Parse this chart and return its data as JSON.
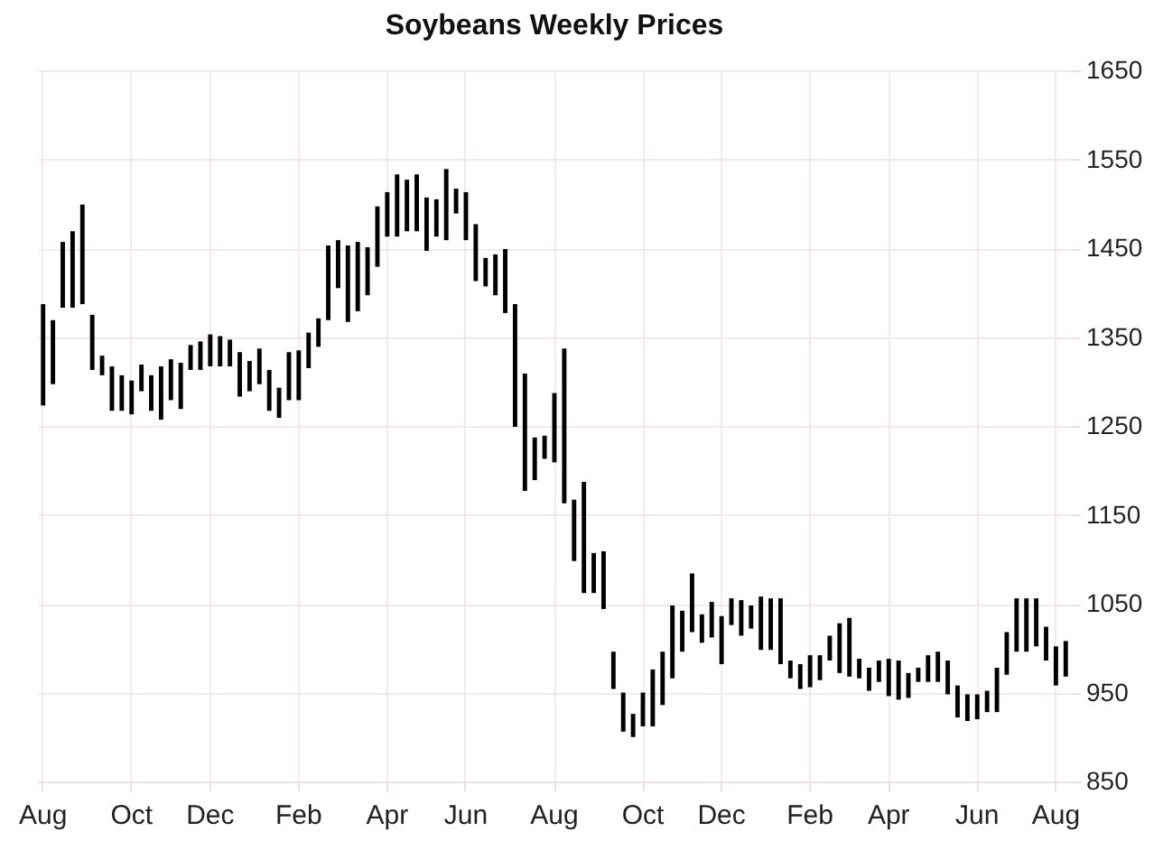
{
  "chart_data": {
    "type": "bar",
    "title": "Soybeans Weekly Prices",
    "categories": [
      "Aug",
      null,
      null,
      null,
      null,
      null,
      null,
      null,
      null,
      "Oct",
      null,
      null,
      null,
      null,
      null,
      null,
      null,
      "Dec",
      null,
      null,
      null,
      null,
      null,
      null,
      null,
      null,
      "Feb",
      null,
      null,
      null,
      null,
      null,
      null,
      null,
      null,
      "Apr",
      null,
      null,
      null,
      null,
      null,
      null,
      null,
      "Jun",
      null,
      null,
      null,
      null,
      null,
      null,
      null,
      null,
      "Aug",
      null,
      null,
      null,
      null,
      null,
      null,
      null,
      null,
      "Oct",
      null,
      null,
      null,
      null,
      null,
      null,
      null,
      "Dec",
      null,
      null,
      null,
      null,
      null,
      null,
      null,
      null,
      "Feb",
      null,
      null,
      null,
      null,
      null,
      null,
      null,
      "Apr",
      null,
      null,
      null,
      null,
      null,
      null,
      null,
      null,
      "Jun",
      null,
      null,
      null,
      null,
      null,
      null,
      null,
      "Aug",
      null
    ],
    "base": [
      1273,
      1297,
      1383,
      1383,
      1387,
      1313,
      1307,
      1267,
      1267,
      1263,
      1289,
      1267,
      1257,
      1279,
      1269,
      1313,
      1313,
      1317,
      1317,
      1317,
      1283,
      1289,
      1297,
      1267,
      1259,
      1279,
      1279,
      1315,
      1339,
      1369,
      1405,
      1367,
      1379,
      1397,
      1429,
      1463,
      1463,
      1469,
      1469,
      1447,
      1463,
      1459,
      1489,
      1459,
      1413,
      1407,
      1397,
      1377,
      1249,
      1177,
      1189,
      1213,
      1209,
      1163,
      1098,
      1062,
      1062,
      1044,
      954,
      906,
      900,
      912,
      912,
      936,
      966,
      996,
      1018,
      1006,
      1012,
      982,
      1026,
      1014,
      1022,
      998,
      998,
      982,
      966,
      954,
      956,
      964,
      986,
      972,
      968,
      966,
      952,
      962,
      946,
      942,
      944,
      962,
      962,
      962,
      948,
      922,
      918,
      920,
      928,
      928,
      970,
      996,
      996,
      1002,
      986,
      958,
      968
    ],
    "values": [
      114,
      72,
      74,
      86,
      112,
      62,
      22,
      50,
      40,
      38,
      30,
      40,
      60,
      46,
      52,
      28,
      32,
      36,
      34,
      30,
      50,
      34,
      40,
      46,
      34,
      54,
      56,
      40,
      32,
      84,
      54,
      86,
      78,
      54,
      68,
      50,
      70,
      58,
      64,
      60,
      42,
      80,
      28,
      54,
      64,
      32,
      46,
      72,
      138,
      132,
      48,
      26,
      78,
      174,
      69,
      125,
      45,
      65,
      42,
      44,
      26,
      38,
      64,
      60,
      82,
      46,
      66,
      32,
      40,
      54,
      30,
      40,
      26,
      60,
      58,
      74,
      20,
      28,
      36,
      28,
      28,
      56,
      66,
      22,
      26,
      24,
      42,
      44,
      28,
      16,
      30,
      34,
      38,
      36,
      30,
      28,
      24,
      50,
      48,
      60,
      60,
      54,
      38,
      44,
      40
    ],
    "color": "#000000",
    "ylim": [
      850,
      1650
    ],
    "yticks": [
      850,
      950,
      1050,
      1150,
      1250,
      1350,
      1450,
      1550,
      1650
    ],
    "grid": true
  }
}
